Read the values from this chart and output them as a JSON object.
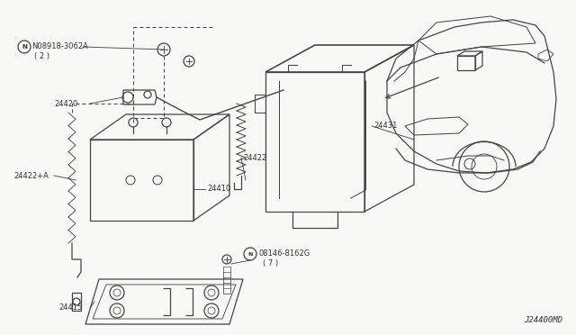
{
  "bg_color": "#f8f8f5",
  "line_color": "#444444",
  "text_color": "#333333",
  "diagram_code": "J24400MD",
  "label_N08918": "N08918-3062A",
  "label_N08918_qty": "( 2 )",
  "label_24420": "24420",
  "label_24422": "24422",
  "label_24422A": "24422+A",
  "label_24410": "24410",
  "label_24431": "24431",
  "label_08146": "08146-8162G",
  "label_08146_qty": "( 7 )",
  "label_24415": "24415"
}
